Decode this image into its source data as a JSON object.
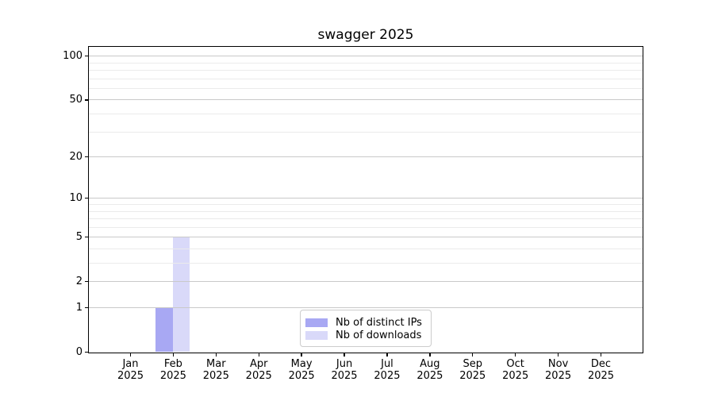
{
  "title": "swagger 2025",
  "chart_data": {
    "type": "bar",
    "title": "swagger 2025",
    "categories": [
      "Jan 2025",
      "Feb 2025",
      "Mar 2025",
      "Apr 2025",
      "May 2025",
      "Jun 2025",
      "Jul 2025",
      "Aug 2025",
      "Sep 2025",
      "Oct 2025",
      "Nov 2025",
      "Dec 2025"
    ],
    "x_tick_months": [
      "Jan",
      "Feb",
      "Mar",
      "Apr",
      "May",
      "Jun",
      "Jul",
      "Aug",
      "Sep",
      "Oct",
      "Nov",
      "Dec"
    ],
    "x_tick_year": "2025",
    "series": [
      {
        "name": "Nb of distinct IPs",
        "color": "#a8a8f3",
        "values": [
          0,
          1,
          0,
          0,
          0,
          0,
          0,
          0,
          0,
          0,
          0,
          0
        ]
      },
      {
        "name": "Nb of downloads",
        "color": "#d9d9f9",
        "values": [
          0,
          5,
          0,
          0,
          0,
          0,
          0,
          0,
          0,
          0,
          0,
          0
        ]
      }
    ],
    "xlabel": "",
    "ylabel": "",
    "y_scale": "log10(1+v)",
    "y_major_ticks": [
      0,
      1,
      2,
      5,
      10,
      20,
      50,
      100
    ],
    "y_minor_gridlines": [
      3,
      4,
      6,
      7,
      8,
      9,
      30,
      40,
      60,
      70,
      80,
      90
    ],
    "ylim": [
      0,
      115
    ],
    "grid": "on",
    "legend_position": "lower center",
    "colors": {
      "major_grid": "#c9c9c9",
      "minor_grid": "#ebebeb",
      "spine": "#000000",
      "background": "#ffffff"
    }
  }
}
